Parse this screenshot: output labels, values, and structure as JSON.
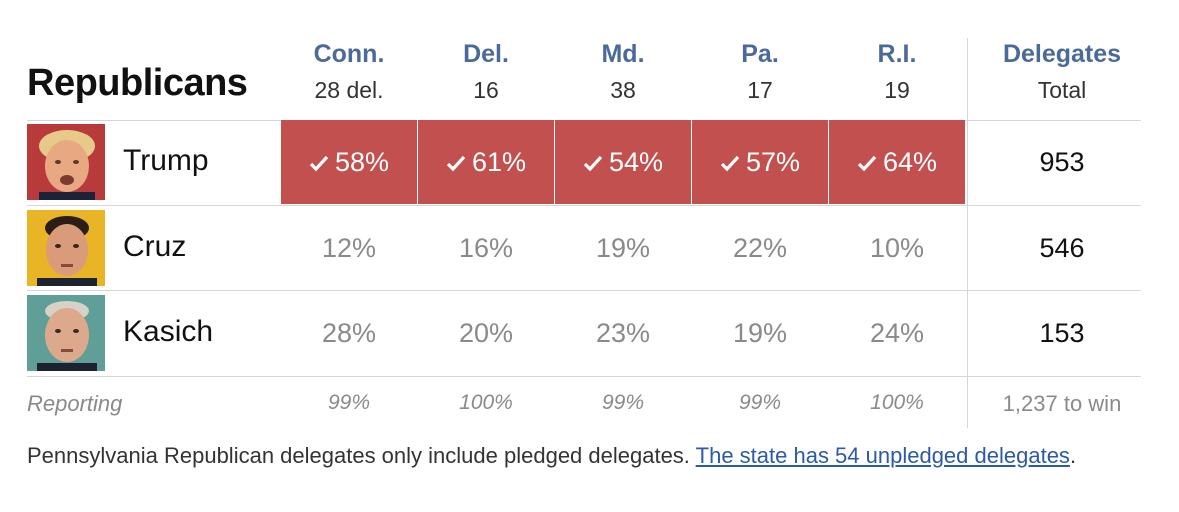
{
  "table": {
    "title": "Republicans",
    "states": [
      {
        "name": "Conn.",
        "delegates": "28 del."
      },
      {
        "name": "Del.",
        "delegates": "16"
      },
      {
        "name": "Md.",
        "delegates": "38"
      },
      {
        "name": "Pa.",
        "delegates": "17"
      },
      {
        "name": "R.I.",
        "delegates": "19"
      }
    ],
    "total_header": {
      "name": "Delegates",
      "sub": "Total"
    },
    "candidates": [
      {
        "name": "Trump",
        "results": [
          "58%",
          "61%",
          "54%",
          "57%",
          "64%"
        ],
        "winner": [
          true,
          true,
          true,
          true,
          true
        ],
        "total": "953"
      },
      {
        "name": "Cruz",
        "results": [
          "12%",
          "16%",
          "19%",
          "22%",
          "10%"
        ],
        "winner": [
          false,
          false,
          false,
          false,
          false
        ],
        "total": "546"
      },
      {
        "name": "Kasich",
        "results": [
          "28%",
          "20%",
          "23%",
          "19%",
          "24%"
        ],
        "winner": [
          false,
          false,
          false,
          false,
          false
        ],
        "total": "153"
      }
    ],
    "reporting": {
      "label": "Reporting",
      "values": [
        "99%",
        "100%",
        "99%",
        "99%",
        "100%"
      ],
      "total": "1,237 to win"
    }
  },
  "note": {
    "text": "Pennsylvania Republican delegates only include pledged delegates. ",
    "link": "The state has 54 unpledged delegates",
    "suffix": "."
  },
  "colors": {
    "winner_fill": "#c2504f",
    "state_header": "#4a6a99",
    "link": "#2b5aa8"
  }
}
